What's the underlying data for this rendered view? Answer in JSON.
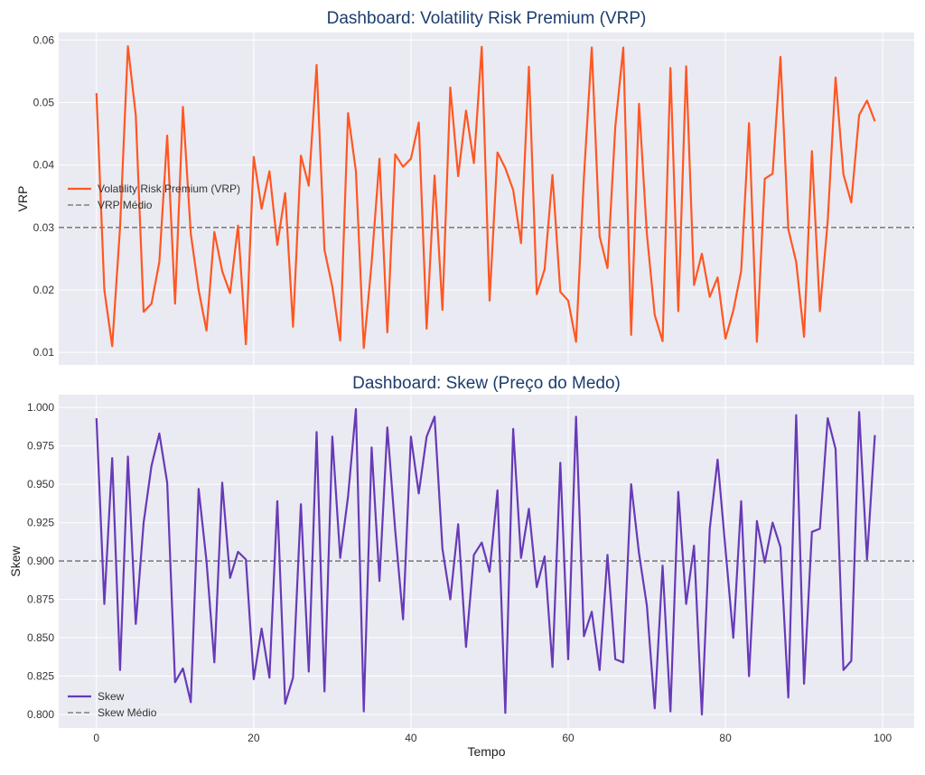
{
  "chart_data": [
    {
      "type": "line",
      "title": "Dashboard: Volatility Risk Premium (VRP)",
      "xlabel": "",
      "ylabel": "VRP",
      "xlim": [
        -4.8,
        104
      ],
      "ylim": [
        0.008,
        0.0612
      ],
      "xticks": [
        0,
        20,
        40,
        60,
        80,
        100
      ],
      "yticks": [
        0.01,
        0.02,
        0.03,
        0.04,
        0.05,
        0.06
      ],
      "ytick_labels": [
        "0.01",
        "0.02",
        "0.03",
        "0.04",
        "0.05",
        "0.06"
      ],
      "grid": true,
      "legend": {
        "placement": "center-left",
        "entries": [
          "Volatility Risk Premium (VRP)",
          "VRP Médio"
        ]
      },
      "series": [
        {
          "name": "Volatility Risk Premium (VRP)",
          "color": "#FF5722",
          "values": [
            0.0515,
            0.02,
            0.011,
            0.03,
            0.059,
            0.048,
            0.0165,
            0.0178,
            0.0245,
            0.0447,
            0.0178,
            0.0493,
            0.029,
            0.02,
            0.0135,
            0.0293,
            0.023,
            0.0195,
            0.0303,
            0.0113,
            0.0413,
            0.033,
            0.039,
            0.0272,
            0.0355,
            0.0141,
            0.0415,
            0.0367,
            0.056,
            0.0264,
            0.0205,
            0.0119,
            0.0483,
            0.039,
            0.0107,
            0.0243,
            0.041,
            0.0132,
            0.0417,
            0.0397,
            0.041,
            0.0468,
            0.0138,
            0.0383,
            0.0168,
            0.0524,
            0.0382,
            0.0487,
            0.0403,
            0.0589,
            0.0183,
            0.042,
            0.0395,
            0.036,
            0.0275,
            0.0557,
            0.0193,
            0.0233,
            0.0384,
            0.0197,
            0.0183,
            0.0117,
            0.038,
            0.0588,
            0.0286,
            0.0235,
            0.0462,
            0.0588,
            0.0128,
            0.0498,
            0.029,
            0.016,
            0.0118,
            0.0555,
            0.0166,
            0.0558,
            0.0208,
            0.0258,
            0.0189,
            0.022,
            0.0122,
            0.0167,
            0.023,
            0.0467,
            0.0117,
            0.0378,
            0.0386,
            0.0573,
            0.0297,
            0.0245,
            0.0125,
            0.0422,
            0.0166,
            0.031,
            0.054,
            0.0385,
            0.034,
            0.048,
            0.0503,
            0.047
          ]
        },
        {
          "name": "VRP Médio",
          "color": "#808080",
          "style": "dashed",
          "value": 0.03
        }
      ]
    },
    {
      "type": "line",
      "title": "Dashboard: Skew (Preço do Medo)",
      "xlabel": "Tempo",
      "ylabel": "Skew",
      "xlim": [
        -4.8,
        104
      ],
      "ylim": [
        0.7912,
        1.0083
      ],
      "xticks": [
        0,
        20,
        40,
        60,
        80,
        100
      ],
      "yticks": [
        0.8,
        0.825,
        0.85,
        0.875,
        0.9,
        0.925,
        0.95,
        0.975,
        1.0
      ],
      "ytick_labels": [
        "0.800",
        "0.825",
        "0.850",
        "0.875",
        "0.900",
        "0.925",
        "0.950",
        "0.975",
        "1.000"
      ],
      "grid": true,
      "legend": {
        "placement": "lower-left",
        "entries": [
          "Skew",
          "Skew Médio"
        ]
      },
      "series": [
        {
          "name": "Skew",
          "color": "#673AB7",
          "values": [
            0.993,
            0.872,
            0.967,
            0.829,
            0.968,
            0.859,
            0.925,
            0.962,
            0.983,
            0.951,
            0.821,
            0.83,
            0.808,
            0.947,
            0.9,
            0.834,
            0.951,
            0.889,
            0.906,
            0.901,
            0.823,
            0.856,
            0.824,
            0.939,
            0.807,
            0.824,
            0.937,
            0.828,
            0.984,
            0.815,
            0.981,
            0.902,
            0.942,
            0.999,
            0.802,
            0.974,
            0.887,
            0.987,
            0.92,
            0.862,
            0.981,
            0.944,
            0.981,
            0.994,
            0.908,
            0.875,
            0.924,
            0.844,
            0.904,
            0.912,
            0.893,
            0.946,
            0.801,
            0.986,
            0.902,
            0.934,
            0.883,
            0.903,
            0.831,
            0.964,
            0.836,
            0.994,
            0.851,
            0.867,
            0.829,
            0.904,
            0.836,
            0.834,
            0.95,
            0.905,
            0.871,
            0.804,
            0.897,
            0.802,
            0.945,
            0.872,
            0.91,
            0.8,
            0.921,
            0.966,
            0.908,
            0.85,
            0.939,
            0.825,
            0.926,
            0.899,
            0.925,
            0.909,
            0.811,
            0.995,
            0.82,
            0.919,
            0.921,
            0.993,
            0.973,
            0.829,
            0.835,
            0.997,
            0.901,
            0.982
          ]
        },
        {
          "name": "Skew Médio",
          "color": "#808080",
          "style": "dashed",
          "value": 0.9
        }
      ]
    }
  ]
}
